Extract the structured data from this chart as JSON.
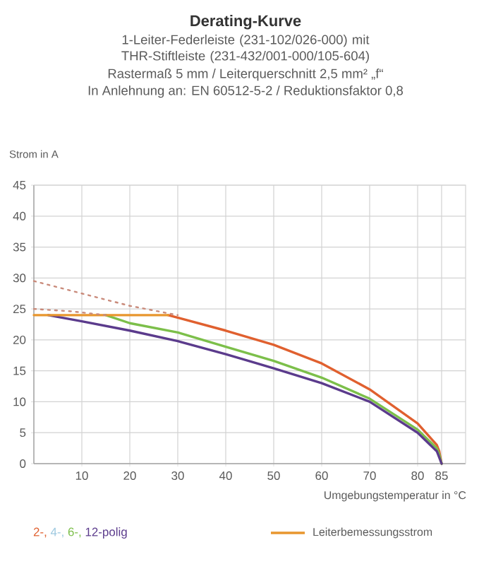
{
  "chart_data": {
    "type": "line",
    "title": "Derating-Kurve",
    "subtitle": "1-Leiter-Federleiste (231-102/026-000) mit THR-Stiftleiste (231-432/001-000/105-604)",
    "annotations": [
      "Rastermaß 5 mm / Leiterquerschnitt 2,5 mm² „f“",
      "In Anlehnung an: EN 60512-5-2 / Reduktionsfaktor 0,8"
    ],
    "xlabel": "Umgebungstemperatur in °C",
    "ylabel": "Strom in A",
    "xlim": [
      0,
      90
    ],
    "ylim": [
      0,
      45
    ],
    "xticks": [
      10,
      20,
      30,
      40,
      50,
      60,
      70,
      80,
      85
    ],
    "yticks": [
      0,
      5,
      10,
      15,
      20,
      25,
      30,
      35,
      40,
      45
    ],
    "grid": true,
    "legend": "bottom",
    "series": [
      {
        "name": "2-,",
        "color": "#e0602f",
        "x": [
          28,
          40,
          50,
          60,
          70,
          80,
          84,
          84.5,
          85
        ],
        "values": [
          24,
          21.5,
          19.2,
          16.2,
          12,
          6.5,
          3,
          2,
          0
        ]
      },
      {
        "name": "4-,",
        "color": "#9ec9e0"
      },
      {
        "name": "6-,",
        "color": "#7cbf4a",
        "x": [
          15,
          20,
          30,
          40,
          50,
          60,
          70,
          80,
          84,
          84.5,
          85
        ],
        "values": [
          24,
          22.7,
          21.2,
          18.9,
          16.6,
          13.9,
          10.5,
          5.5,
          2.5,
          1.5,
          0
        ]
      },
      {
        "name": "12-polig",
        "color": "#5b3b8c",
        "x": [
          3,
          10,
          20,
          30,
          40,
          50,
          60,
          70,
          80,
          84,
          85
        ],
        "values": [
          24,
          23,
          21.5,
          19.8,
          17.7,
          15.4,
          13,
          10,
          5,
          2,
          0
        ]
      },
      {
        "name": "Leiterbemessungsstrom",
        "color": "#e8962e",
        "x": [
          0,
          10,
          20,
          28
        ],
        "values": [
          24,
          24,
          24,
          24
        ]
      },
      {
        "color": "#c98a7a",
        "line_style": "dotted",
        "x": [
          0,
          10,
          20,
          30
        ],
        "values": [
          29.5,
          27.5,
          25.5,
          24
        ]
      },
      {
        "color": "#c98a7a",
        "line_style": "dotted",
        "x": [
          0,
          8,
          15
        ],
        "values": [
          25,
          24.6,
          24
        ]
      }
    ]
  }
}
